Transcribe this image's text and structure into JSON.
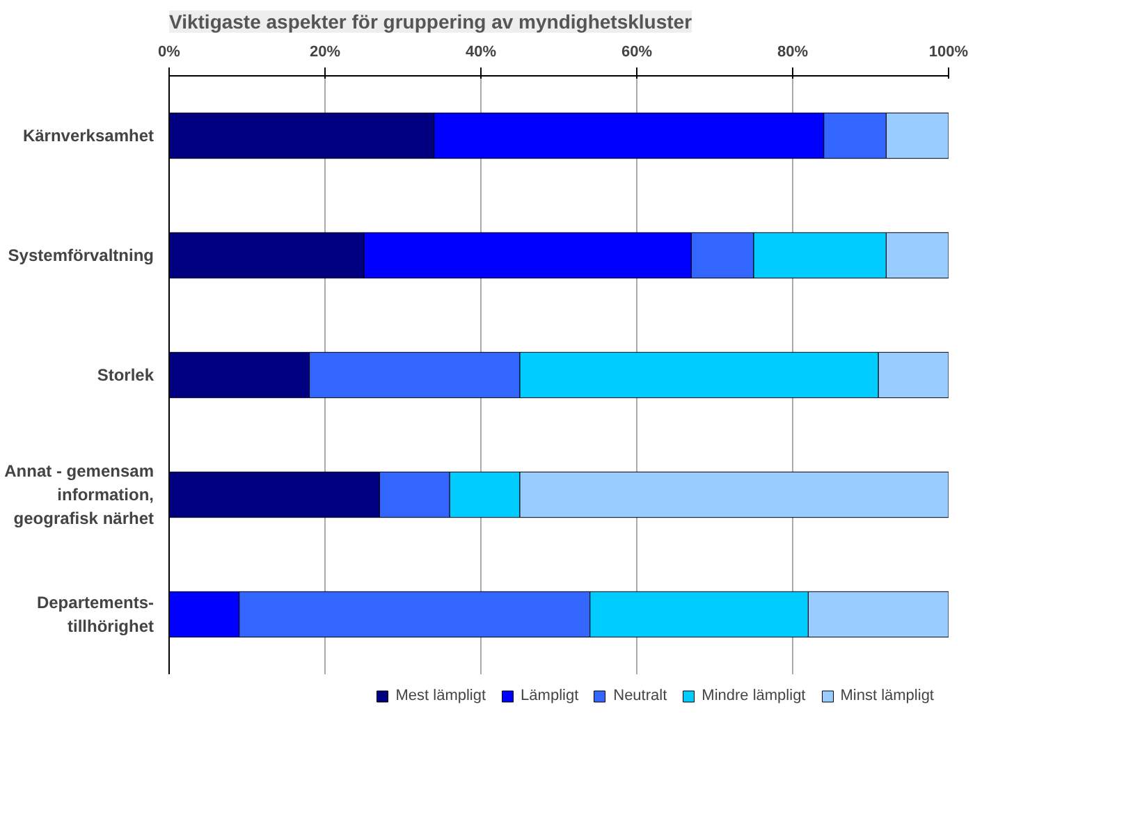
{
  "chart_data": {
    "type": "bar",
    "orientation": "horizontal",
    "stacked": true,
    "title": "Viktigaste aspekter för gruppering av myndighetskluster",
    "categories": [
      "Kärnverksamhet",
      "Systemförvaltning",
      "Storlek",
      "Annat - gemensam information, geografisk närhet",
      "Departements-tillhörighet"
    ],
    "series": [
      {
        "name": "Mest lämpligt",
        "color": "#000080",
        "values": [
          34,
          25,
          18,
          27,
          0
        ]
      },
      {
        "name": "Lämpligt",
        "color": "#0000ff",
        "values": [
          50,
          42,
          0,
          0,
          9
        ]
      },
      {
        "name": "Neutralt",
        "color": "#3366ff",
        "values": [
          8,
          8,
          27,
          9,
          45
        ]
      },
      {
        "name": "Mindre lämpligt",
        "color": "#00ccff",
        "values": [
          0,
          17,
          46,
          9,
          28
        ]
      },
      {
        "name": "Minst lämpligt",
        "color": "#99ccff",
        "values": [
          8,
          8,
          9,
          55,
          18
        ]
      }
    ],
    "xlim": [
      0,
      100
    ],
    "xticks": [
      {
        "value": 0,
        "label": "0%"
      },
      {
        "value": 20,
        "label": "20%"
      },
      {
        "value": 40,
        "label": "40%"
      },
      {
        "value": 60,
        "label": "60%"
      },
      {
        "value": 80,
        "label": "80%"
      },
      {
        "value": 100,
        "label": "100%"
      }
    ],
    "grid": "x",
    "legend": "bottom"
  }
}
